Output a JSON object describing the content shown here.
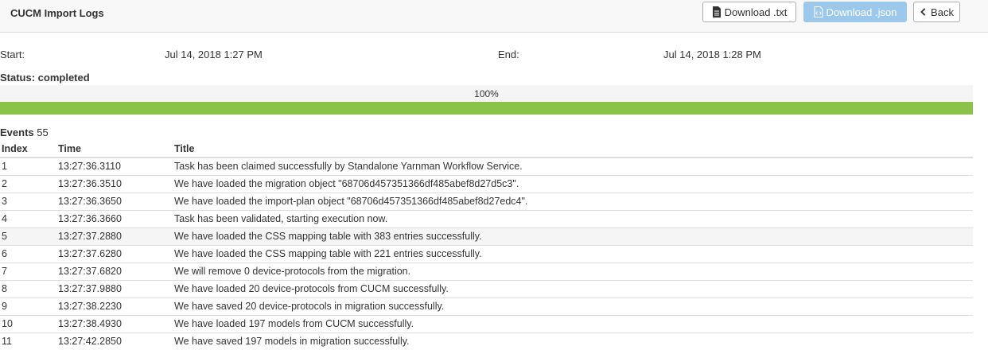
{
  "header": {
    "title": "CUCM Import Logs",
    "buttons": {
      "download_txt": "Download .txt",
      "download_json": "Download .json",
      "back": "Back"
    }
  },
  "meta": {
    "start_label": "Start:",
    "start_value": "Jul 14, 2018 1:27 PM",
    "end_label": "End:",
    "end_value": "Jul 14, 2018 1:28 PM",
    "status": "Status: completed"
  },
  "progress": {
    "label": "100%",
    "percent": 100,
    "color": "#8bc34a"
  },
  "events": {
    "label": "Events",
    "count": "55"
  },
  "table": {
    "columns": [
      "Index",
      "Time",
      "Title"
    ],
    "rows": [
      {
        "index": "1",
        "time": "13:27:36.3110",
        "title": "Task has been claimed successfully by Standalone Yarnman Workflow Service."
      },
      {
        "index": "2",
        "time": "13:27:36.3510",
        "title": "We have loaded the migration object \"68706d457351366df485abef8d27d5c3\"."
      },
      {
        "index": "3",
        "time": "13:27:36.3650",
        "title": "We have loaded the import-plan object \"68706d457351366df485abef8d27edc4\"."
      },
      {
        "index": "4",
        "time": "13:27:36.3660",
        "title": "Task has been validated, starting execution now."
      },
      {
        "index": "5",
        "time": "13:27:37.2880",
        "title": "We have loaded the CSS mapping table with 383 entries successfully."
      },
      {
        "index": "6",
        "time": "13:27:37.6280",
        "title": "We have loaded the CSS mapping table with 221 entries successfully."
      },
      {
        "index": "7",
        "time": "13:27:37.6820",
        "title": "We will remove 0 device-protocols from the migration."
      },
      {
        "index": "8",
        "time": "13:27:37.9880",
        "title": "We have loaded 20 device-protocols from CUCM successfully."
      },
      {
        "index": "9",
        "time": "13:27:38.2230",
        "title": "We have saved 20 device-protocols in migration successfully."
      },
      {
        "index": "10",
        "time": "13:27:38.4930",
        "title": "We have loaded 197 models from CUCM successfully."
      },
      {
        "index": "11",
        "time": "13:27:42.2850",
        "title": "We have saved 197 models in migration successfully."
      }
    ]
  }
}
